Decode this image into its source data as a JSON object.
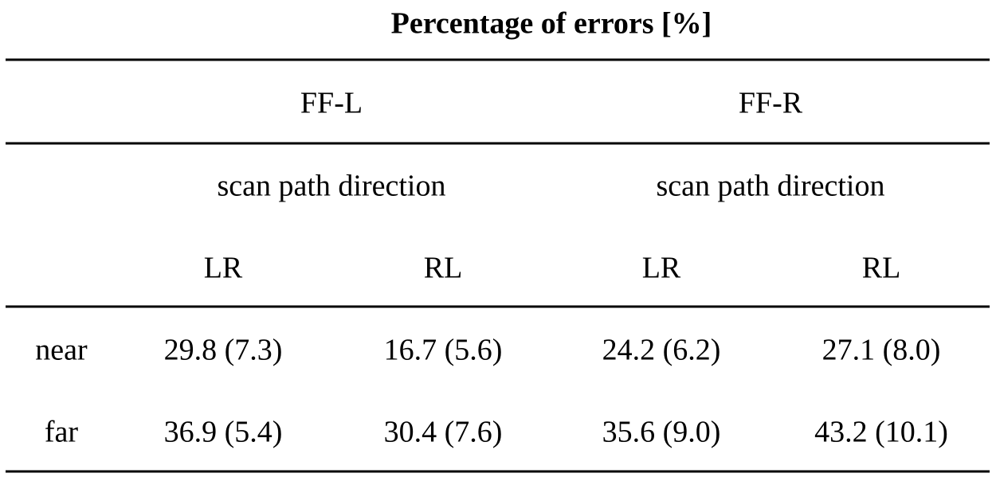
{
  "table": {
    "title": "Percentage of errors [%]",
    "groups": [
      {
        "label": "FF-L",
        "subheader": "scan path direction",
        "columns": [
          "LR",
          "RL"
        ]
      },
      {
        "label": "FF-R",
        "subheader": "scan path direction",
        "columns": [
          "LR",
          "RL"
        ]
      }
    ],
    "rows": [
      {
        "label": "near",
        "cells": [
          "29.8 (7.3)",
          "16.7 (5.6)",
          "24.2 (6.2)",
          "27.1 (8.0)"
        ]
      },
      {
        "label": "far",
        "cells": [
          "36.9 (5.4)",
          "30.4 (7.6)",
          "35.6 (9.0)",
          "43.2 (10.1)"
        ]
      }
    ]
  }
}
